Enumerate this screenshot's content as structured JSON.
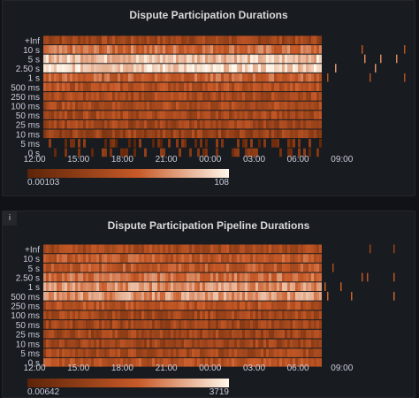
{
  "panels": [
    {
      "title": "Dispute Participation Durations",
      "info_icon": false,
      "legend": {
        "min": "0.00103",
        "max": "108"
      }
    },
    {
      "title": "Dispute Participation Pipeline Durations",
      "info_icon": true,
      "info_glyph": "i",
      "legend": {
        "min": "0.00642",
        "max": "3719"
      }
    }
  ],
  "colors": {
    "background": "#111217",
    "panel": "#181b1f",
    "heat_low": "#5c2408",
    "heat_high": "#fff7ea"
  },
  "chart_data": [
    {
      "type": "heatmap",
      "title": "Dispute Participation Durations",
      "y_buckets": [
        "+Inf",
        "10 s",
        "5 s",
        "2.50 s",
        "1 s",
        "500 ms",
        "250 ms",
        "100 ms",
        "50 ms",
        "25 ms",
        "10 ms",
        "5 ms",
        "0 s"
      ],
      "x_ticks": [
        "15:00",
        "18:00",
        "21:00",
        "00:00",
        "03:00",
        "06:00",
        "09:00",
        "12:00"
      ],
      "data_end": "07:30",
      "color_scale": {
        "min": 0.00103,
        "max": 108,
        "scheme": "oranges"
      },
      "bucket_intensity": [
        0.35,
        0.6,
        0.85,
        0.9,
        0.55,
        0.45,
        0.4,
        0.4,
        0.38,
        0.35,
        0.32,
        0.12,
        0.15
      ]
    },
    {
      "type": "heatmap",
      "title": "Dispute Participation Pipeline Durations",
      "y_buckets": [
        "+Inf",
        "10 s",
        "5 s",
        "2.50 s",
        "1 s",
        "500 ms",
        "250 ms",
        "100 ms",
        "50 ms",
        "25 ms",
        "10 ms",
        "5 ms",
        "0 s"
      ],
      "x_ticks": [
        "15:00",
        "18:00",
        "21:00",
        "00:00",
        "03:00",
        "06:00",
        "09:00",
        "12:00"
      ],
      "data_end": "07:30",
      "color_scale": {
        "min": 0.00642,
        "max": 3719,
        "scheme": "oranges"
      },
      "bucket_intensity": [
        0.4,
        0.5,
        0.5,
        0.6,
        0.7,
        0.72,
        0.45,
        0.38,
        0.35,
        0.35,
        0.35,
        0.38,
        0.45
      ]
    }
  ]
}
